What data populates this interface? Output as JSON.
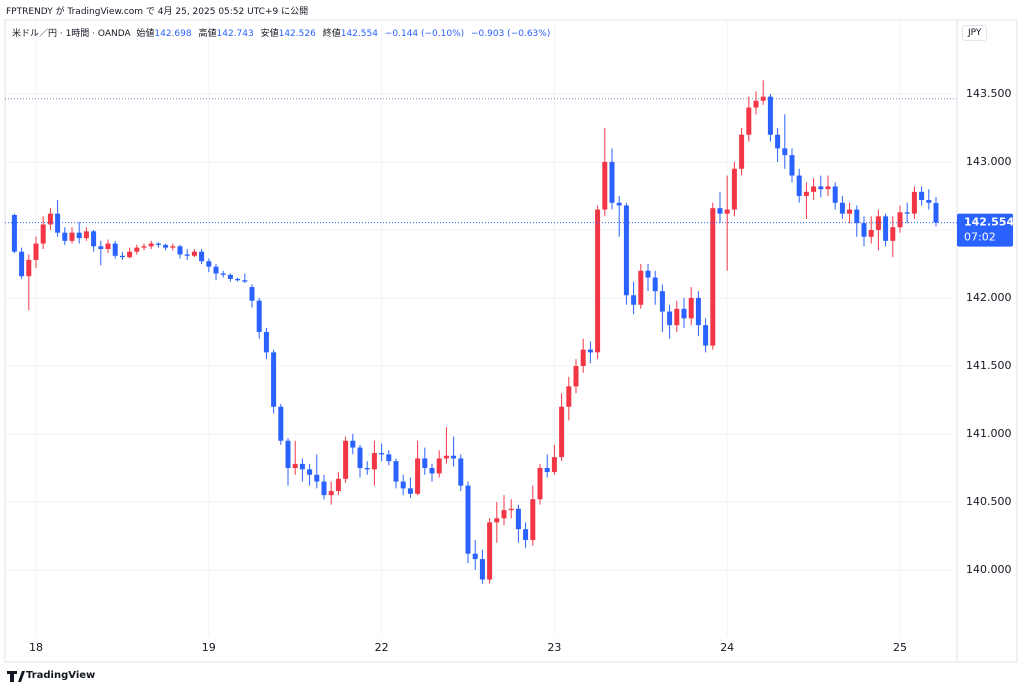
{
  "header": {
    "publisher": "FPTRENDY が TradingView.com で 4月 25, 2025 05:52 UTC+9 に公開"
  },
  "chart_data": {
    "type": "candlestick",
    "symbol": "米ドル／円 · 1時間 · OANDA",
    "legend_labels": {
      "open": "始値",
      "high": "高値",
      "low": "安値",
      "close": "終値"
    },
    "change": "−0.144 (−0.10%)",
    "change_day": "−0.903 (−0.63%)",
    "currency": "JPY",
    "countdown": "07:02",
    "categories": [
      null,
      null,
      null,
      "18",
      null,
      null,
      null,
      null,
      null,
      null,
      null,
      null,
      null,
      null,
      null,
      null,
      null,
      null,
      null,
      null,
      null,
      null,
      null,
      null,
      null,
      null,
      null,
      "19",
      null,
      null,
      null,
      null,
      null,
      null,
      null,
      null,
      null,
      null,
      null,
      null,
      null,
      null,
      null,
      null,
      null,
      null,
      null,
      null,
      null,
      null,
      null,
      "22",
      null,
      null,
      null,
      null,
      null,
      null,
      null,
      null,
      null,
      null,
      null,
      null,
      null,
      null,
      null,
      null,
      null,
      null,
      null,
      null,
      null,
      null,
      null,
      "23",
      null,
      null,
      null,
      null,
      null,
      null,
      null,
      null,
      null,
      null,
      null,
      null,
      null,
      null,
      null,
      null,
      null,
      null,
      null,
      null,
      null,
      null,
      null,
      "24",
      null,
      null,
      null,
      null,
      null,
      null,
      null,
      null,
      null,
      null,
      null,
      null,
      null,
      null,
      null,
      null,
      null,
      null,
      null,
      null,
      null,
      null,
      null,
      "25",
      null,
      null,
      null,
      null,
      null
    ],
    "open": [
      142.61,
      142.34,
      142.16,
      142.28,
      142.4,
      142.54,
      142.62,
      142.48,
      142.42,
      142.48,
      142.44,
      142.49,
      142.38,
      142.36,
      142.4,
      142.31,
      142.3,
      142.34,
      142.37,
      142.38,
      142.4,
      142.39,
      142.37,
      142.38,
      142.32,
      142.31,
      142.34,
      142.27,
      142.23,
      142.18,
      142.17,
      142.14,
      142.13,
      142.08,
      141.98,
      141.75,
      141.6,
      141.2,
      140.95,
      140.75,
      140.78,
      140.74,
      140.7,
      140.65,
      140.55,
      140.58,
      140.67,
      140.95,
      140.9,
      140.75,
      140.74,
      140.86,
      140.85,
      140.8,
      140.65,
      140.6,
      140.56,
      140.82,
      140.75,
      140.71,
      140.82,
      140.84,
      140.82,
      140.62,
      140.12,
      140.08,
      139.93,
      140.35,
      140.38,
      140.44,
      140.45,
      140.3,
      140.22,
      140.52,
      140.75,
      140.72,
      140.83,
      141.2,
      141.35,
      141.5,
      141.62,
      141.6,
      142.65,
      143.0,
      142.7,
      142.68,
      142.02,
      141.95,
      142.2,
      142.15,
      142.05,
      141.9,
      141.8,
      141.92,
      141.85,
      142.0,
      141.8,
      141.65,
      142.66,
      142.62,
      142.65,
      142.95,
      143.2,
      143.4,
      143.45,
      143.48,
      143.2,
      143.1,
      143.05,
      142.9,
      142.75,
      142.78,
      142.82,
      142.8,
      142.82,
      142.7,
      142.62,
      142.65,
      142.55,
      142.45,
      142.5,
      142.6,
      142.42,
      142.52,
      142.63,
      142.62,
      142.78,
      142.72,
      142.698
    ],
    "high": [
      142.62,
      142.37,
      142.32,
      142.45,
      142.6,
      142.66,
      142.72,
      142.52,
      142.52,
      142.56,
      142.52,
      142.5,
      142.42,
      142.43,
      142.42,
      142.34,
      142.37,
      142.39,
      142.4,
      142.42,
      142.41,
      142.4,
      142.4,
      142.39,
      142.36,
      142.36,
      142.36,
      142.29,
      142.25,
      142.2,
      142.18,
      142.15,
      142.18,
      142.1,
      142.0,
      141.78,
      141.62,
      141.22,
      140.97,
      140.95,
      140.82,
      140.78,
      140.85,
      140.7,
      140.65,
      140.72,
      140.98,
      141.0,
      140.92,
      140.8,
      140.95,
      140.93,
      140.88,
      140.82,
      140.7,
      140.68,
      140.95,
      140.9,
      140.78,
      140.88,
      141.05,
      140.98,
      140.85,
      140.65,
      140.22,
      140.15,
      140.38,
      140.5,
      140.55,
      140.52,
      140.48,
      140.35,
      140.62,
      140.78,
      140.85,
      140.92,
      141.3,
      141.42,
      141.55,
      141.7,
      141.68,
      142.68,
      143.25,
      143.1,
      142.75,
      142.7,
      142.12,
      142.25,
      142.25,
      142.2,
      142.1,
      141.95,
      141.98,
      142.0,
      142.08,
      142.05,
      141.85,
      142.7,
      142.78,
      142.9,
      143.0,
      143.25,
      143.48,
      143.52,
      143.6,
      143.5,
      143.25,
      143.35,
      143.1,
      142.95,
      142.85,
      142.88,
      142.9,
      142.9,
      142.85,
      142.75,
      142.7,
      142.68,
      142.6,
      142.6,
      142.65,
      142.62,
      142.6,
      142.68,
      142.7,
      142.82,
      142.82,
      142.8,
      142.743
    ],
    "low": [
      142.33,
      142.14,
      141.91,
      142.22,
      142.36,
      142.5,
      142.45,
      142.39,
      142.4,
      142.4,
      142.42,
      142.34,
      142.24,
      142.33,
      142.29,
      142.28,
      142.29,
      142.32,
      142.35,
      142.36,
      142.37,
      142.35,
      142.35,
      142.29,
      142.28,
      142.3,
      142.25,
      142.19,
      142.13,
      142.15,
      142.12,
      142.12,
      142.11,
      141.93,
      141.7,
      141.55,
      141.15,
      140.92,
      140.62,
      140.7,
      140.65,
      140.62,
      140.6,
      140.52,
      140.48,
      140.55,
      140.64,
      140.85,
      140.68,
      140.7,
      140.62,
      140.8,
      140.77,
      140.6,
      140.55,
      140.53,
      140.55,
      140.7,
      140.65,
      140.68,
      140.78,
      140.76,
      140.58,
      140.05,
      140.0,
      139.9,
      139.9,
      140.2,
      140.33,
      140.38,
      140.2,
      140.16,
      140.18,
      140.48,
      140.68,
      140.7,
      140.8,
      141.1,
      141.3,
      141.45,
      141.52,
      141.55,
      142.6,
      142.65,
      142.45,
      141.95,
      141.88,
      141.92,
      142.05,
      141.95,
      141.75,
      141.7,
      141.75,
      141.78,
      141.8,
      141.72,
      141.6,
      141.62,
      142.55,
      142.2,
      142.6,
      142.9,
      143.15,
      143.35,
      143.42,
      143.15,
      143.0,
      142.95,
      142.85,
      142.7,
      142.58,
      142.72,
      142.74,
      142.75,
      142.65,
      142.58,
      142.55,
      142.45,
      142.38,
      142.4,
      142.35,
      142.38,
      142.3,
      142.48,
      142.55,
      142.58,
      142.68,
      142.65,
      142.526
    ],
    "close": [
      142.34,
      142.16,
      142.28,
      142.4,
      142.54,
      142.62,
      142.48,
      142.42,
      142.48,
      142.44,
      142.49,
      142.38,
      142.36,
      142.4,
      142.31,
      142.3,
      142.34,
      142.37,
      142.38,
      142.4,
      142.39,
      142.37,
      142.38,
      142.32,
      142.31,
      142.34,
      142.27,
      142.23,
      142.18,
      142.17,
      142.14,
      142.13,
      142.12,
      141.98,
      141.75,
      141.6,
      141.2,
      140.95,
      140.75,
      140.78,
      140.74,
      140.7,
      140.65,
      140.55,
      140.58,
      140.67,
      140.95,
      140.9,
      140.75,
      140.74,
      140.86,
      140.85,
      140.8,
      140.65,
      140.6,
      140.56,
      140.82,
      140.75,
      140.71,
      140.82,
      140.84,
      140.82,
      140.62,
      140.12,
      140.08,
      139.93,
      140.35,
      140.38,
      140.44,
      140.45,
      140.3,
      140.22,
      140.52,
      140.75,
      140.72,
      140.83,
      141.2,
      141.35,
      141.5,
      141.62,
      141.6,
      142.65,
      143.0,
      142.7,
      142.68,
      142.02,
      141.95,
      142.2,
      142.15,
      142.05,
      141.9,
      141.8,
      141.92,
      141.85,
      142.0,
      141.8,
      141.65,
      142.66,
      142.62,
      142.65,
      142.95,
      143.2,
      143.4,
      143.45,
      143.48,
      143.2,
      143.1,
      143.05,
      142.9,
      142.75,
      142.78,
      142.82,
      142.8,
      142.82,
      142.7,
      142.62,
      142.65,
      142.55,
      142.45,
      142.5,
      142.6,
      142.42,
      142.52,
      142.63,
      142.62,
      142.78,
      142.72,
      142.7,
      142.554
    ],
    "up_color": "#f23645",
    "down_color": "#2962ff",
    "hline": 143.465,
    "ylim": [
      139.338,
      144.029
    ],
    "yticks": [
      {
        "value": 140,
        "label": "140.000"
      },
      {
        "value": 140.5,
        "label": "140.500"
      },
      {
        "value": 141,
        "label": "141.000"
      },
      {
        "value": 141.5,
        "label": "141.500"
      },
      {
        "value": 142,
        "label": "142.000"
      },
      {
        "value": 142.5,
        "label": "142.500"
      },
      {
        "value": 143,
        "label": "143.000"
      },
      {
        "value": 143.5,
        "label": "143.500"
      }
    ],
    "grid": true
  },
  "footer": {
    "brand": "TradingView"
  }
}
